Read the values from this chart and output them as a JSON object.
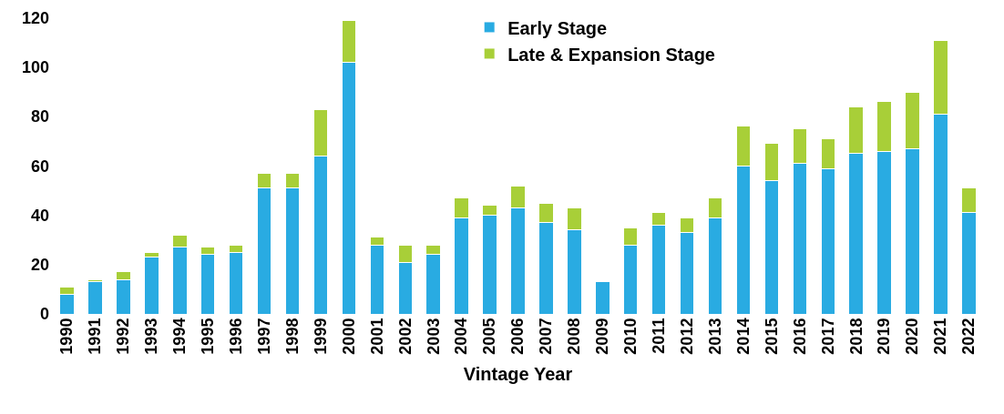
{
  "chart_data": {
    "type": "bar",
    "stacked": true,
    "xlabel": "Vintage Year",
    "categories": [
      "1990",
      "1991",
      "1992",
      "1993",
      "1994",
      "1995",
      "1996",
      "1997",
      "1998",
      "1999",
      "2000",
      "2001",
      "2002",
      "2003",
      "2004",
      "2005",
      "2006",
      "2007",
      "2008",
      "2009",
      "2010",
      "2011",
      "2012",
      "2013",
      "2014",
      "2015",
      "2016",
      "2017",
      "2018",
      "2019",
      "2020",
      "2021",
      "2022"
    ],
    "series": [
      {
        "name": "Early Stage",
        "color": "#29abe2",
        "values": [
          8,
          13,
          14,
          23,
          27,
          24,
          25,
          51,
          51,
          64,
          102,
          28,
          21,
          24,
          39,
          40,
          43,
          37,
          34,
          13,
          28,
          36,
          33,
          39,
          60,
          54,
          61,
          59,
          65,
          66,
          67,
          81,
          41
        ]
      },
      {
        "name": "Late & Expansion Stage",
        "color": "#a8cf38",
        "values": [
          3,
          1,
          3,
          2,
          5,
          3,
          3,
          6,
          6,
          19,
          17,
          3,
          7,
          4,
          8,
          4,
          9,
          8,
          9,
          null,
          7,
          5,
          6,
          8,
          16,
          15,
          14,
          12,
          19,
          20,
          23,
          30,
          10
        ]
      }
    ],
    "ylim": [
      0,
      121
    ],
    "yticks": [
      0,
      20,
      40,
      60,
      80,
      100,
      120
    ],
    "legend": "top"
  }
}
